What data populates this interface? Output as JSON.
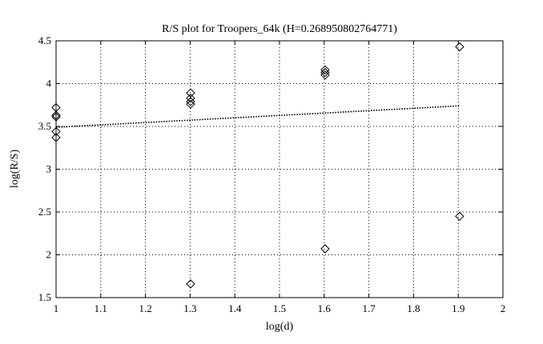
{
  "chart_data": {
    "type": "scatter",
    "title": "R/S plot for Troopers_64k (H=0.268950802764771)",
    "xlabel": "log(d)",
    "ylabel": "log(R/S)",
    "xlim": [
      1,
      2
    ],
    "ylim": [
      1.5,
      4.5
    ],
    "x_ticks": [
      1,
      1.1,
      1.2,
      1.3,
      1.4,
      1.5,
      1.6,
      1.7,
      1.8,
      1.9,
      2
    ],
    "x_tick_labels": [
      "1",
      "1.1",
      "1.2",
      "1.3",
      "1.4",
      "1.5",
      "1.6",
      "1.7",
      "1.8",
      "1.9",
      "2"
    ],
    "y_ticks": [
      1.5,
      2,
      2.5,
      3,
      3.5,
      4,
      4.5
    ],
    "y_tick_labels": [
      "1.5",
      "2",
      "2.5",
      "3",
      "3.5",
      "4",
      "4.5"
    ],
    "grid": true,
    "marker": "diamond",
    "points": [
      {
        "x": 1.0,
        "y": 3.72
      },
      {
        "x": 1.0,
        "y": 3.63
      },
      {
        "x": 1.0,
        "y": 3.61
      },
      {
        "x": 1.0,
        "y": 3.44
      },
      {
        "x": 1.0,
        "y": 3.37
      },
      {
        "x": 1.301,
        "y": 3.89
      },
      {
        "x": 1.301,
        "y": 3.83
      },
      {
        "x": 1.301,
        "y": 3.79
      },
      {
        "x": 1.301,
        "y": 3.76
      },
      {
        "x": 1.301,
        "y": 1.66
      },
      {
        "x": 1.602,
        "y": 4.16
      },
      {
        "x": 1.602,
        "y": 4.13
      },
      {
        "x": 1.602,
        "y": 4.1
      },
      {
        "x": 1.602,
        "y": 2.07
      },
      {
        "x": 1.903,
        "y": 4.43
      },
      {
        "x": 1.903,
        "y": 2.45
      }
    ],
    "fit_line": {
      "x": [
        1.0,
        1.903
      ],
      "y": [
        3.49,
        3.74
      ],
      "style": "dotted"
    }
  }
}
